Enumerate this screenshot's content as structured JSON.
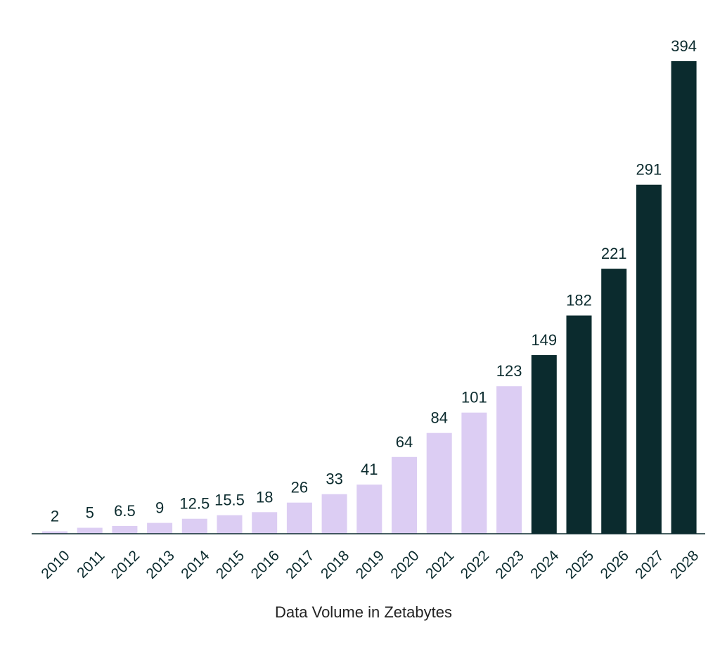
{
  "chart_data": {
    "type": "bar",
    "categories": [
      "2010",
      "2011",
      "2012",
      "2013",
      "2014",
      "2015",
      "2016",
      "2017",
      "2018",
      "2019",
      "2020",
      "2021",
      "2022",
      "2023",
      "2024",
      "2025",
      "2026",
      "2027",
      "2028"
    ],
    "values": [
      2,
      5,
      6.5,
      9,
      12.5,
      15.5,
      18,
      26,
      33,
      41,
      64,
      84,
      101,
      123,
      149,
      182,
      221,
      291,
      394
    ],
    "data_labels": [
      "2",
      "5",
      "6.5",
      "9",
      "12.5",
      "15.5",
      "18",
      "26",
      "33",
      "41",
      "64",
      "84",
      "101",
      "123",
      "149",
      "182",
      "221",
      "291",
      "394"
    ],
    "title": "",
    "xlabel": "Data Volume in Zetabytes",
    "ylabel": "",
    "ylim": [
      0,
      394
    ],
    "grid": false,
    "legend": "none",
    "colors": {
      "historical": "#dccdf3",
      "forecast": "#0b2b2e",
      "text": "#0b2b2e",
      "axis": "#0b2b2e"
    },
    "forecast_start_index": 14
  }
}
